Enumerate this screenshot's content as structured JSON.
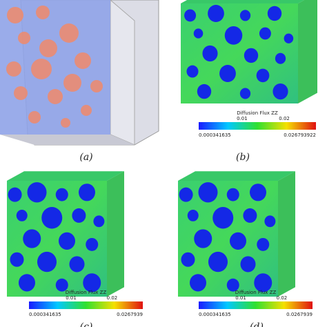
{
  "panels": [
    {
      "label": "(a)"
    },
    {
      "label": "(b)",
      "colorbar": {
        "title": "Diffusion Flux ZZ",
        "ticks": [
          "0.01",
          "0.02"
        ],
        "min": "0.000341635",
        "max": "0.026793922"
      }
    },
    {
      "label": "(c)",
      "colorbar": {
        "title": "Diffusion Flux ZZ",
        "ticks": [
          "0.01",
          "0.02"
        ],
        "min": "0.000341635",
        "max": "0.0267939"
      }
    },
    {
      "label": "(d)",
      "colorbar": {
        "title": "Diffusion Flux ZZ",
        "ticks": [
          "0.01",
          "0.02"
        ],
        "min": "0.000341635",
        "max": "0.0267939"
      }
    }
  ]
}
